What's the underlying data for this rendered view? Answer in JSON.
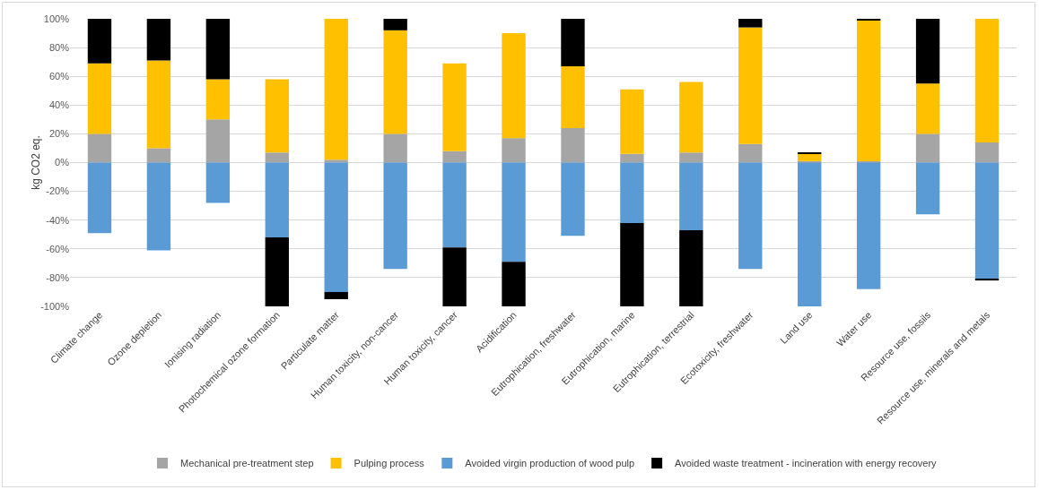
{
  "chart_data": {
    "type": "bar",
    "stacked": true,
    "ylabel": "kg CO2 eq.",
    "categories": [
      "Climate change",
      "Ozone depletion",
      "Ionising radiation",
      "Photochemical ozone formation",
      "Particulate matter",
      "Human toxicity, non-cancer",
      "Human toxicity, cancer",
      "Acidification",
      "Eutrophication, freshwater",
      "Eutrophication, marine",
      "Eutrophication, terrestrial",
      "Ecotoxicity, freshwater",
      "Land use",
      "Water use",
      "Resource use, fossils",
      "Resource use, minerals and metals"
    ],
    "series": [
      {
        "name": "Mechanical pre-treatment step",
        "color": "#a5a5a5",
        "values": [
          20,
          10,
          30,
          7,
          2,
          20,
          8,
          17,
          24,
          6,
          7,
          13,
          1,
          1,
          20,
          14
        ]
      },
      {
        "name": "Pulping process",
        "color": "#ffc000",
        "values": [
          49,
          61,
          28,
          51,
          98,
          72,
          61,
          73,
          43,
          45,
          49,
          81,
          5,
          98,
          35,
          86
        ]
      },
      {
        "name": "Avoided virgin production of wood pulp",
        "color": "#5b9bd5",
        "values": [
          -49,
          -61,
          -28,
          -52,
          -90,
          -74,
          -59,
          -69,
          -51,
          -42,
          -47,
          -74,
          -100,
          -88,
          -36,
          -81
        ]
      },
      {
        "name": "Avoided waste treatment - incineration with energy recovery",
        "color": "#000000",
        "values": [
          31,
          29,
          42,
          -48,
          -5,
          8,
          -41,
          -31,
          33,
          -58,
          -53,
          6,
          1,
          1,
          45,
          -1
        ]
      }
    ],
    "ylim": [
      -100,
      100
    ],
    "yticks": [
      {
        "value": -100,
        "label": "-100%"
      },
      {
        "value": -80,
        "label": "-80%"
      },
      {
        "value": -60,
        "label": "-60%"
      },
      {
        "value": -40,
        "label": "-40%"
      },
      {
        "value": -20,
        "label": "-20%"
      },
      {
        "value": 0,
        "label": "0%"
      },
      {
        "value": 20,
        "label": "20%"
      },
      {
        "value": 40,
        "label": "40%"
      },
      {
        "value": 60,
        "label": "60%"
      },
      {
        "value": 80,
        "label": "80%"
      },
      {
        "value": 100,
        "label": "100%"
      }
    ],
    "grid": "y",
    "legend": "bottom"
  }
}
